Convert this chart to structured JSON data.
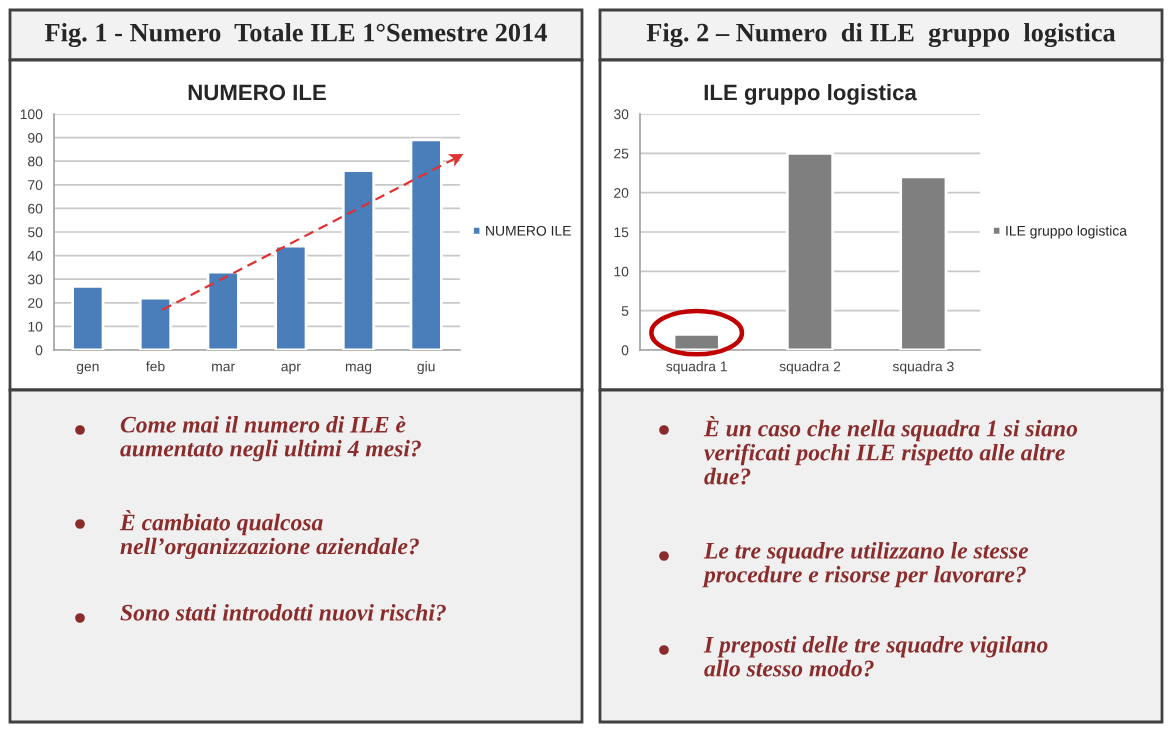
{
  "chart_data": [
    {
      "type": "bar",
      "title": "Fig. 1 - Numero  Totale ILE 1°Semestre 2014",
      "subtitle": "NUMERO ILE",
      "categories": [
        "gen",
        "feb",
        "mar",
        "apr",
        "mag",
        "giu"
      ],
      "series": [
        {
          "name": "NUMERO ILE",
          "color": "#4a7ebb",
          "values": [
            27,
            22,
            33,
            44,
            76,
            89
          ]
        }
      ],
      "ylim": [
        0,
        100
      ],
      "yticks": [
        0,
        10,
        20,
        30,
        40,
        50,
        60,
        70,
        80,
        90,
        100
      ],
      "grid": "y",
      "legend": "right",
      "annotations": [
        "Come mai il numero di ILE è\naumentato negli ultimi 4 mesi?",
        "È cambiato qualcosa\nnell’organizzazione aziendale?",
        "Sono stati introdotti nuovi rischi?"
      ]
    },
    {
      "type": "bar",
      "title": "Fig. 2 – Numero  di ILE  gruppo  logistica",
      "subtitle": "ILE gruppo logistica",
      "categories": [
        "squadra 1",
        "squadra 2",
        "squadra 3"
      ],
      "series": [
        {
          "name": "ILE gruppo logistica",
          "color": "#7f7f7f",
          "values": [
            2,
            25,
            22
          ]
        }
      ],
      "ylim": [
        0,
        30
      ],
      "yticks": [
        0,
        5,
        10,
        15,
        20,
        25,
        30
      ],
      "grid": "y",
      "legend": "right",
      "annotations": [
        "È un caso che nella squadra 1 si siano\nverificati pochi ILE rispetto alle altre\ndue?",
        "Le tre squadre utilizzano le stesse\nprocedure e risorse per lavorare?",
        "I preposti delle tre squadre vigilano\nallo stesso modo?"
      ]
    }
  ]
}
